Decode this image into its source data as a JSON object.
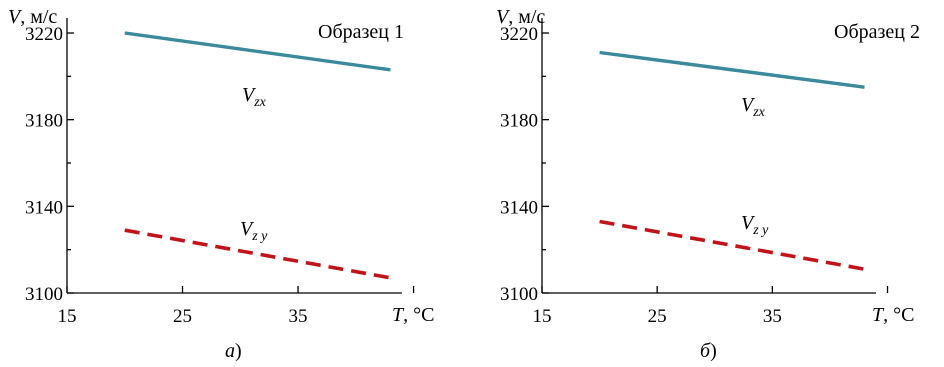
{
  "chart_data": [
    {
      "type": "line",
      "panel_label": "a)",
      "panel_label_italic": "а",
      "panel_label_rest": ")",
      "title": "Образец 1",
      "xlabel_var": "T",
      "xlabel_unit": ", °С",
      "ylabel_var": "V",
      "ylabel_unit": ", м/с",
      "xlim": [
        15,
        44
      ],
      "ylim": [
        3100,
        3226
      ],
      "x_ticks": [
        15,
        25,
        35
      ],
      "y_ticks": [
        3100,
        3140,
        3180,
        3220
      ],
      "grid": false,
      "series": [
        {
          "name": "Vzx",
          "label_main": "V",
          "label_sub": "zx",
          "color": "#3a8a9c",
          "style": "solid",
          "x": [
            20,
            43
          ],
          "y": [
            3220,
            3203
          ]
        },
        {
          "name": "Vzy",
          "label_main": "V",
          "label_sub": "z y",
          "color": "#c0141a",
          "style": "dashed",
          "x": [
            20,
            43
          ],
          "y": [
            3129,
            3107
          ]
        }
      ]
    },
    {
      "type": "line",
      "panel_label": "б)",
      "panel_label_italic": "б",
      "panel_label_rest": ")",
      "title": "Образец 2",
      "xlabel_var": "T",
      "xlabel_unit": ", °С",
      "ylabel_var": "V",
      "ylabel_unit": ", м/с",
      "xlim": [
        15,
        44
      ],
      "ylim": [
        3100,
        3226
      ],
      "x_ticks": [
        15,
        25,
        35
      ],
      "y_ticks": [
        3100,
        3140,
        3180,
        3220
      ],
      "grid": false,
      "series": [
        {
          "name": "Vzx",
          "label_main": "V",
          "label_sub": "zx",
          "color": "#3a8a9c",
          "style": "solid",
          "x": [
            20,
            43
          ],
          "y": [
            3211,
            3195
          ]
        },
        {
          "name": "Vzy",
          "label_main": "V",
          "label_sub": "z y",
          "color": "#c0141a",
          "style": "dashed",
          "x": [
            20,
            43
          ],
          "y": [
            3133,
            3111
          ]
        }
      ]
    }
  ]
}
